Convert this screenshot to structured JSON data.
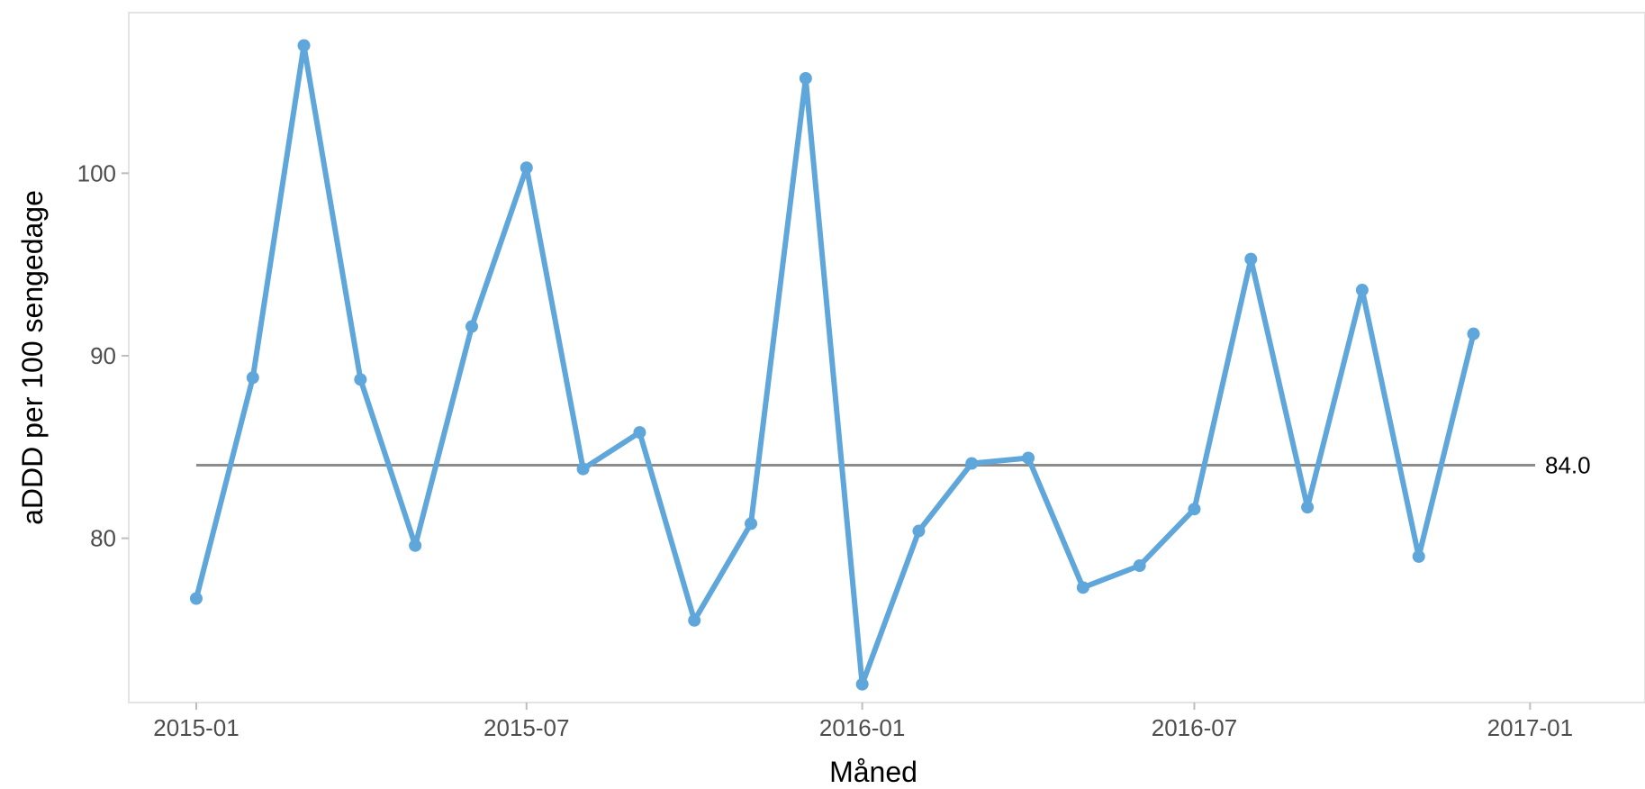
{
  "chart_data": {
    "type": "line",
    "title": "",
    "xlabel": "Måned",
    "ylabel": "aDDD per 100 sengedage",
    "x_ticks": [
      {
        "date": "2015-01-01",
        "label": "2015-01"
      },
      {
        "date": "2015-07-01",
        "label": "2015-07"
      },
      {
        "date": "2016-01-01",
        "label": "2016-01"
      },
      {
        "date": "2016-07-01",
        "label": "2016-07"
      },
      {
        "date": "2017-01-01",
        "label": "2017-01"
      }
    ],
    "y_ticks": [
      80,
      90,
      100
    ],
    "xlim": [
      "2014-11-25",
      "2017-03-05"
    ],
    "ylim": [
      71.0,
      108.8
    ],
    "grid": false,
    "legend": "none",
    "series": [
      {
        "color": "#5fa6db",
        "points": [
          {
            "x": "2015-01-01",
            "y": 76.7
          },
          {
            "x": "2015-02-01",
            "y": 88.8
          },
          {
            "x": "2015-03-01",
            "y": 107.0
          },
          {
            "x": "2015-04-01",
            "y": 88.7
          },
          {
            "x": "2015-05-01",
            "y": 79.6
          },
          {
            "x": "2015-06-01",
            "y": 91.6
          },
          {
            "x": "2015-07-01",
            "y": 100.3
          },
          {
            "x": "2015-08-01",
            "y": 83.8
          },
          {
            "x": "2015-09-01",
            "y": 85.8
          },
          {
            "x": "2015-10-01",
            "y": 75.5
          },
          {
            "x": "2015-11-01",
            "y": 80.8
          },
          {
            "x": "2015-12-01",
            "y": 105.2
          },
          {
            "x": "2016-01-01",
            "y": 72.0
          },
          {
            "x": "2016-02-01",
            "y": 80.4
          },
          {
            "x": "2016-03-01",
            "y": 84.1
          },
          {
            "x": "2016-04-01",
            "y": 84.4
          },
          {
            "x": "2016-05-01",
            "y": 77.3
          },
          {
            "x": "2016-06-01",
            "y": 78.5
          },
          {
            "x": "2016-07-01",
            "y": 81.6
          },
          {
            "x": "2016-08-01",
            "y": 95.3
          },
          {
            "x": "2016-09-01",
            "y": 81.7
          },
          {
            "x": "2016-10-01",
            "y": 93.6
          },
          {
            "x": "2016-11-01",
            "y": 79.0
          },
          {
            "x": "2016-12-01",
            "y": 91.2
          }
        ]
      }
    ],
    "reference_line": {
      "y": 84.0,
      "label": "84.0",
      "color": "#8c8c8c"
    },
    "colors": {
      "panel_border": "#e3e3e3",
      "tick_mark": "#bdbdbd"
    }
  }
}
